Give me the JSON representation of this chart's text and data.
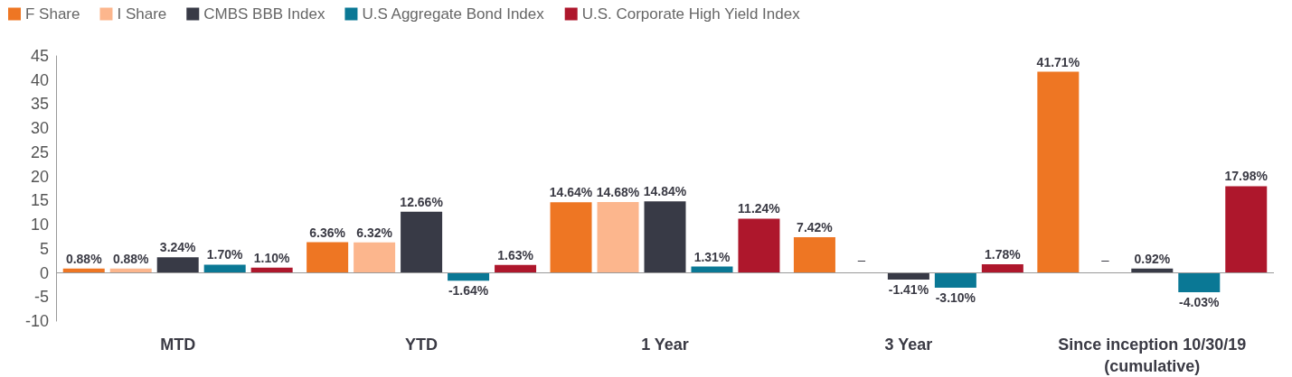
{
  "chart_data": {
    "type": "bar",
    "categories": [
      "MTD",
      "YTD",
      "1 Year",
      "3 Year",
      "Since inception 10/30/19\n(cumulative)"
    ],
    "series": [
      {
        "name": "F Share",
        "color": "#ee7623",
        "values": [
          0.88,
          6.36,
          14.64,
          7.42,
          41.71
        ],
        "value_labels": [
          "0.88%",
          "6.36%",
          "14.64%",
          "7.42%",
          "41.71%"
        ]
      },
      {
        "name": "I Share",
        "color": "#fcb68d",
        "values": [
          0.88,
          6.32,
          14.68,
          null,
          null
        ],
        "value_labels": [
          "0.88%",
          "6.32%",
          "14.68%",
          "–",
          "–"
        ]
      },
      {
        "name": "CMBS BBB Index",
        "color": "#383a46",
        "values": [
          3.24,
          12.66,
          14.84,
          -1.41,
          0.92
        ],
        "value_labels": [
          "3.24%",
          "12.66%",
          "14.84%",
          "-1.41%",
          "0.92%"
        ]
      },
      {
        "name": "U.S Aggregate Bond Index",
        "color": "#0a7895",
        "values": [
          1.7,
          -1.64,
          1.31,
          -3.1,
          -4.03
        ],
        "value_labels": [
          "1.70%",
          "-1.64%",
          "1.31%",
          "-3.10%",
          "-4.03%"
        ]
      },
      {
        "name": "U.S. Corporate High Yield Index",
        "color": "#ae172c",
        "values": [
          1.1,
          1.63,
          11.24,
          1.78,
          17.98
        ],
        "value_labels": [
          "1.10%",
          "1.63%",
          "11.24%",
          "1.78%",
          "17.98%"
        ]
      }
    ],
    "ref_lines": [
      {
        "axis": "y",
        "value": 0,
        "color": "#999999",
        "line_style": "solid"
      }
    ],
    "ylim": [
      -10,
      45
    ],
    "yticks": [
      -10,
      -5,
      0,
      5,
      10,
      15,
      20,
      25,
      30,
      35,
      40,
      45
    ],
    "grid": false,
    "legend": "top left"
  }
}
